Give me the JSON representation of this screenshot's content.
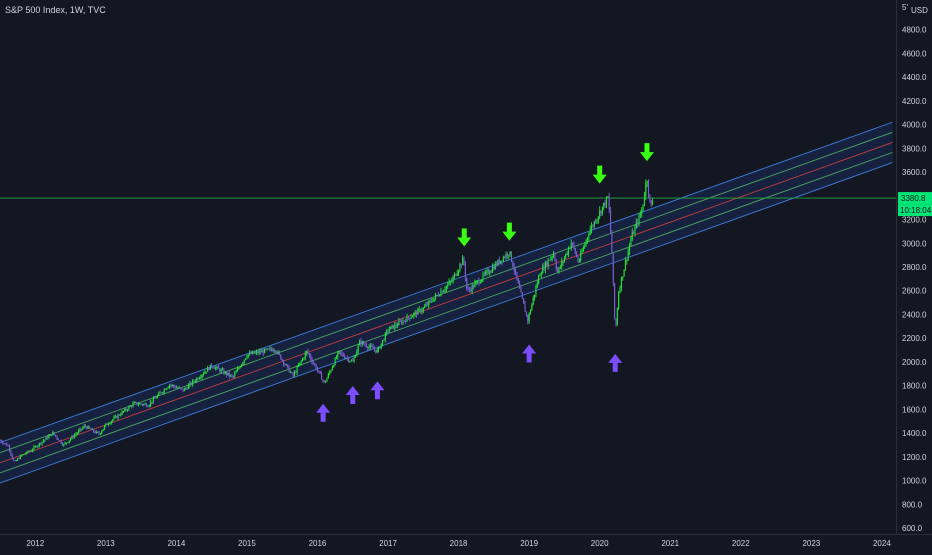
{
  "chart_data": {
    "type": "candlestick",
    "title": "S&P 500 Index, 1W, TVC",
    "currency": "USD",
    "y_unit_top_label": "5'",
    "ylim": [
      550,
      5050
    ],
    "xlim": [
      2011.5,
      2024.2
    ],
    "y_ticks": [
      {
        "value": 4800,
        "label": "4800.0"
      },
      {
        "value": 4600,
        "label": "4600.0"
      },
      {
        "value": 4400,
        "label": "4400.0"
      },
      {
        "value": 4200,
        "label": "4200.0"
      },
      {
        "value": 4000,
        "label": "4000.0"
      },
      {
        "value": 3800,
        "label": "3800.0"
      },
      {
        "value": 3600,
        "label": "3600.0"
      },
      {
        "value": 3200,
        "label": "3200.0"
      },
      {
        "value": 3000,
        "label": "3000.0"
      },
      {
        "value": 2800,
        "label": "2800.0"
      },
      {
        "value": 2600,
        "label": "2600.0"
      },
      {
        "value": 2400,
        "label": "2400.0"
      },
      {
        "value": 2200,
        "label": "2200.0"
      },
      {
        "value": 2000,
        "label": "2000.0"
      },
      {
        "value": 1800,
        "label": "1800.0"
      },
      {
        "value": 1600,
        "label": "1600.0"
      },
      {
        "value": 1400,
        "label": "1400.0"
      },
      {
        "value": 1200,
        "label": "1200.0"
      },
      {
        "value": 1000,
        "label": "1000.0"
      },
      {
        "value": 800,
        "label": "800.0"
      },
      {
        "value": 600,
        "label": "600.0"
      }
    ],
    "x_ticks": [
      {
        "value": 2012,
        "label": "2012"
      },
      {
        "value": 2013,
        "label": "2013"
      },
      {
        "value": 2014,
        "label": "2014"
      },
      {
        "value": 2015,
        "label": "2015"
      },
      {
        "value": 2016,
        "label": "2016"
      },
      {
        "value": 2017,
        "label": "2017"
      },
      {
        "value": 2018,
        "label": "2018"
      },
      {
        "value": 2019,
        "label": "2019"
      },
      {
        "value": 2020,
        "label": "2020"
      },
      {
        "value": 2021,
        "label": "2021"
      },
      {
        "value": 2022,
        "label": "2022"
      },
      {
        "value": 2023,
        "label": "2023"
      },
      {
        "value": 2024,
        "label": "2024"
      }
    ],
    "price_path": [
      [
        2011.5,
        1340
      ],
      [
        2011.62,
        1290
      ],
      [
        2011.7,
        1150
      ],
      [
        2011.8,
        1210
      ],
      [
        2011.95,
        1260
      ],
      [
        2012.25,
        1400
      ],
      [
        2012.4,
        1300
      ],
      [
        2012.7,
        1460
      ],
      [
        2012.9,
        1390
      ],
      [
        2013.0,
        1470
      ],
      [
        2013.4,
        1650
      ],
      [
        2013.6,
        1640
      ],
      [
        2013.9,
        1810
      ],
      [
        2014.1,
        1760
      ],
      [
        2014.5,
        1970
      ],
      [
        2014.8,
        1870
      ],
      [
        2015.0,
        2060
      ],
      [
        2015.4,
        2110
      ],
      [
        2015.65,
        1880
      ],
      [
        2015.85,
        2090
      ],
      [
        2016.1,
        1820
      ],
      [
        2016.3,
        2080
      ],
      [
        2016.5,
        2000
      ],
      [
        2016.6,
        2170
      ],
      [
        2016.85,
        2090
      ],
      [
        2017.0,
        2270
      ],
      [
        2017.5,
        2450
      ],
      [
        2017.9,
        2680
      ],
      [
        2018.07,
        2870
      ],
      [
        2018.12,
        2590
      ],
      [
        2018.35,
        2720
      ],
      [
        2018.72,
        2930
      ],
      [
        2018.85,
        2640
      ],
      [
        2018.98,
        2350
      ],
      [
        2019.15,
        2750
      ],
      [
        2019.35,
        2920
      ],
      [
        2019.4,
        2750
      ],
      [
        2019.6,
        3010
      ],
      [
        2019.7,
        2840
      ],
      [
        2019.85,
        3100
      ],
      [
        2020.12,
        3390
      ],
      [
        2020.17,
        2960
      ],
      [
        2020.22,
        2240
      ],
      [
        2020.27,
        2600
      ],
      [
        2020.45,
        3050
      ],
      [
        2020.6,
        3280
      ],
      [
        2020.67,
        3560
      ],
      [
        2020.72,
        3290
      ],
      [
        2020.76,
        3380
      ]
    ],
    "last_price": 3380.8,
    "last_price_label": "3380.8",
    "countdown_label": "10:18:04",
    "regression_channel": {
      "mid_start": [
        2011.5,
        1150
      ],
      "mid_end": [
        2024.15,
        3850
      ],
      "band_offsets": [
        -170,
        -85,
        0,
        85,
        170
      ],
      "band_colors": [
        "#3b73c9",
        "#4a9a5f",
        "#b23b3b",
        "#4a9a5f",
        "#3b73c9"
      ],
      "fill_color": "#2962ff"
    },
    "annotations": [
      {
        "type": "arrow-down",
        "x": 2018.08,
        "y": 3040,
        "color": "#39ff14"
      },
      {
        "type": "arrow-down",
        "x": 2018.72,
        "y": 3090,
        "color": "#39ff14"
      },
      {
        "type": "arrow-down",
        "x": 2020.0,
        "y": 3570,
        "color": "#39ff14"
      },
      {
        "type": "arrow-down",
        "x": 2020.67,
        "y": 3760,
        "color": "#39ff14"
      },
      {
        "type": "arrow-up",
        "x": 2016.08,
        "y": 1580,
        "color": "#7c4dff"
      },
      {
        "type": "arrow-up",
        "x": 2016.5,
        "y": 1730,
        "color": "#7c4dff"
      },
      {
        "type": "arrow-up",
        "x": 2016.85,
        "y": 1770,
        "color": "#7c4dff"
      },
      {
        "type": "arrow-up",
        "x": 2019.0,
        "y": 2080,
        "color": "#7c4dff"
      },
      {
        "type": "arrow-up",
        "x": 2020.22,
        "y": 2000,
        "color": "#7c4dff"
      }
    ],
    "colors": {
      "up": "#26e03a",
      "down": "#7b5fd6",
      "last_price_line": "#26a641",
      "last_price_bg": "#00e676",
      "background": "#131722",
      "axis_text": "#d1d4dc"
    },
    "grid": false
  }
}
